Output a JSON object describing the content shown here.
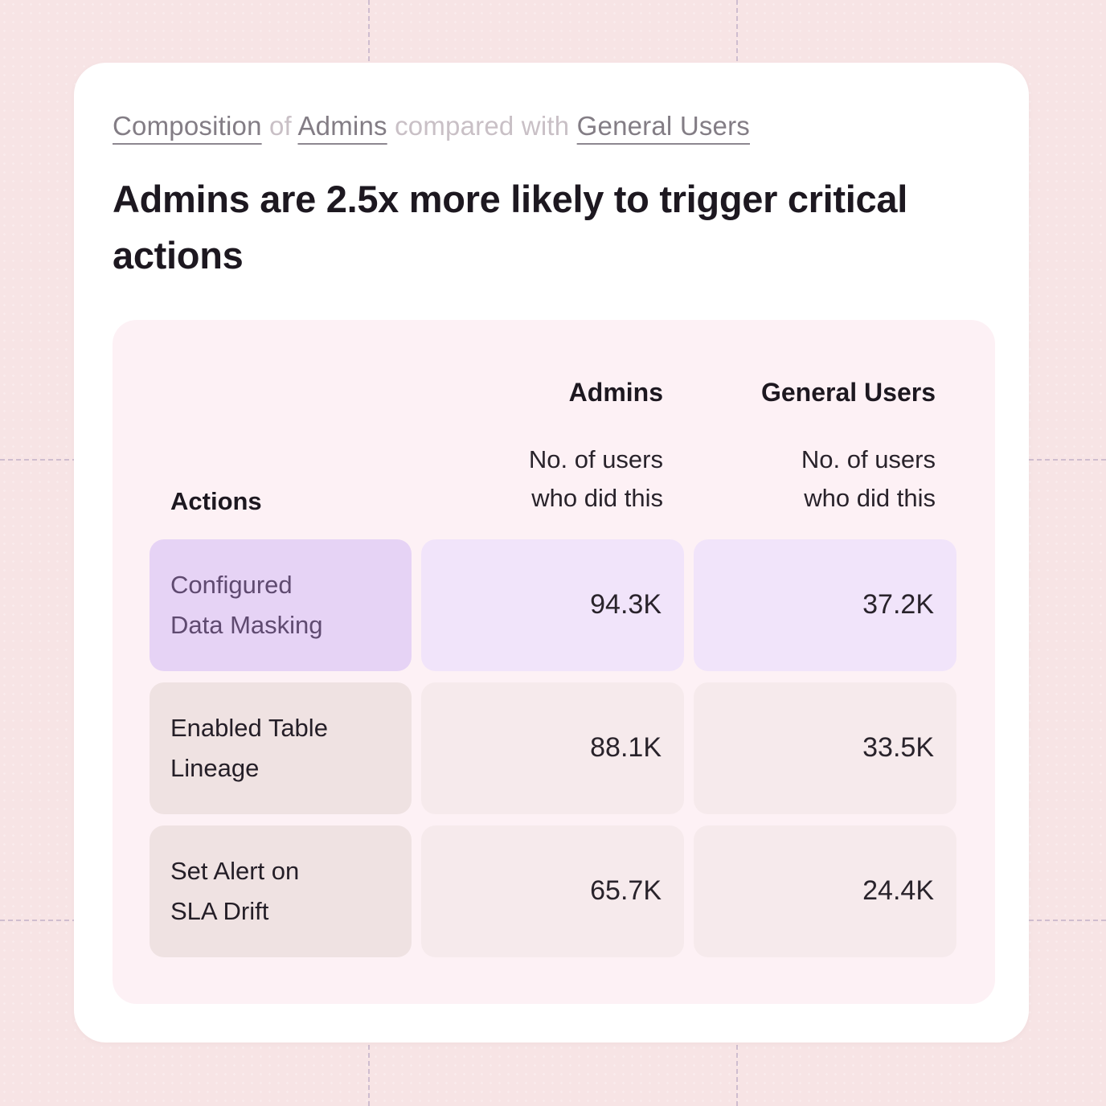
{
  "eyebrow": {
    "segments": [
      {
        "text": "Composition"
      },
      {
        "text": " of "
      },
      {
        "text": "Admins"
      },
      {
        "text": " compared with "
      },
      {
        "text": "General Users"
      }
    ]
  },
  "title": "Admins are 2.5x more likely to trigger critical actions",
  "table": {
    "row_header": "Actions",
    "columns": [
      {
        "group": "Admins",
        "subheader": "No. of users\nwho did this"
      },
      {
        "group": "General Users",
        "subheader": "No. of users\nwho did this"
      }
    ],
    "rows": [
      {
        "action": "Configured\nData Masking",
        "admins": "94.3K",
        "general_users": "37.2K",
        "highlighted": true
      },
      {
        "action": "Enabled Table\nLineage",
        "admins": "88.1K",
        "general_users": "33.5K",
        "highlighted": false
      },
      {
        "action": "Set Alert on\nSLA Drift",
        "admins": "65.7K",
        "general_users": "24.4K",
        "highlighted": false
      }
    ]
  },
  "chart_data": {
    "type": "table",
    "title": "Admins are 2.5x more likely to trigger critical actions",
    "subtitle": "Composition of Admins compared with General Users",
    "row_header": "Actions",
    "value_label": "No. of users who did this",
    "categories": [
      "Configured Data Masking",
      "Enabled Table Lineage",
      "Set Alert on SLA Drift"
    ],
    "series": [
      {
        "name": "Admins",
        "values": [
          94300,
          88100,
          65700
        ],
        "display_values": [
          "94.3K",
          "88.1K",
          "65.7K"
        ]
      },
      {
        "name": "General Users",
        "values": [
          37200,
          33500,
          24400
        ],
        "display_values": [
          "37.2K",
          "33.5K",
          "24.4K"
        ]
      }
    ],
    "highlighted_row": "Configured Data Masking",
    "ratio_insight": "2.5x"
  },
  "colors": {
    "page_bg": "#f7e4e5",
    "card_bg": "#ffffff",
    "panel_bg": "#fdf1f5",
    "highlight_label_bg": "#e6d3f5",
    "highlight_value_bg": "#f1e4fa",
    "highlight_text": "#5f4a70",
    "row_label_bg": "#efe2e2",
    "row_value_bg": "#f6eaec",
    "text_primary": "#1d1820",
    "eyebrow_link": "#837d85",
    "eyebrow_muted": "#c9c0c6"
  }
}
